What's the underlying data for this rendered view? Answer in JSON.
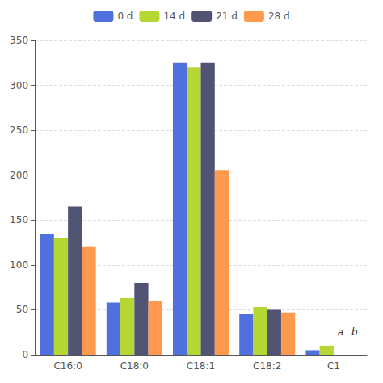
{
  "chart_data": {
    "type": "bar",
    "categories": [
      "C16:0",
      "C18:0",
      "C18:1",
      "C18:2",
      "C1"
    ],
    "series": [
      {
        "name": "0 d",
        "values": [
          135,
          58,
          325,
          45,
          5
        ]
      },
      {
        "name": "14 d",
        "values": [
          130,
          63,
          320,
          53,
          10
        ]
      },
      {
        "name": "21 d",
        "values": [
          165,
          80,
          325,
          50,
          0
        ]
      },
      {
        "name": "28 d",
        "values": [
          120,
          60,
          205,
          47,
          0
        ]
      }
    ],
    "ylim": [
      0,
      350
    ],
    "yticks": [
      0,
      50,
      100,
      150,
      200,
      250,
      300,
      350
    ],
    "grid": true,
    "legend": "top",
    "annotations": [
      {
        "text": "a",
        "x": "C1",
        "series": "21 d",
        "y": 20
      },
      {
        "text": "b",
        "x": "C1",
        "series": "28 d",
        "y": 20
      }
    ]
  }
}
